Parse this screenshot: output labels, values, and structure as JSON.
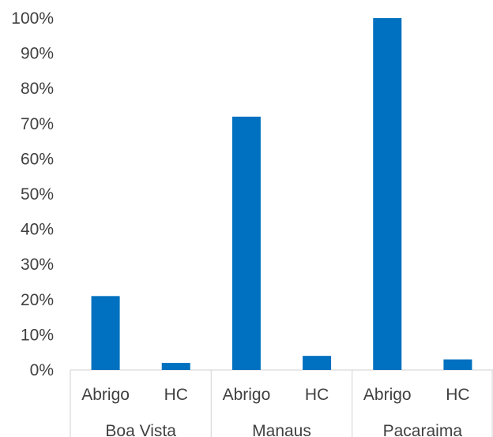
{
  "chart_data": {
    "type": "bar",
    "title": "",
    "xlabel": "",
    "ylabel": "",
    "ylim": [
      0,
      100
    ],
    "y_ticks": [
      "0%",
      "10%",
      "20%",
      "30%",
      "40%",
      "50%",
      "60%",
      "70%",
      "80%",
      "90%",
      "100%"
    ],
    "grid": false,
    "legend": "none",
    "bar_color": "#0070C0",
    "groups": [
      {
        "name": "Boa Vista",
        "categories": [
          "Abrigo",
          "HC"
        ],
        "values": [
          21,
          2
        ]
      },
      {
        "name": "Manaus",
        "categories": [
          "Abrigo",
          "HC"
        ],
        "values": [
          72,
          4
        ]
      },
      {
        "name": "Pacaraima",
        "categories": [
          "Abrigo",
          "HC"
        ],
        "values": [
          100,
          3
        ]
      }
    ]
  }
}
